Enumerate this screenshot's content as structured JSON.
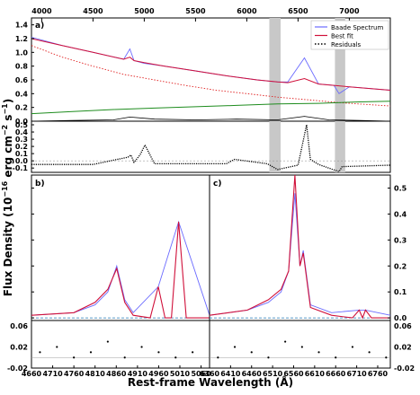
{
  "figure": {
    "ylabel": "Flux Density (10$^{-16}$ erg cm$^{-2}$ s$^{-1}$)",
    "ylabel_parts": [
      "Flux Density (10",
      "−16",
      " erg cm",
      "−2",
      " s",
      "−1",
      ")"
    ],
    "xlabel": "Rest-frame Wavelength (Å)"
  },
  "colors": {
    "spectrum": "#6b6bff",
    "best_fit": "#d0103a",
    "host": "#1e8c1e",
    "powerlaw": "#e02020",
    "shade": "#c8c8c8",
    "narrow": "#2aa02a",
    "broad": "#1f77b4"
  },
  "chart_data": [
    {
      "panel": "a)",
      "type": "line",
      "xlim": [
        3900,
        7400
      ],
      "ylim": [
        0,
        1.5
      ],
      "x_ticks": [
        4000,
        4500,
        5000,
        5500,
        6000,
        6500,
        7000
      ],
      "y_ticks": [
        "0.0",
        "0.2",
        "0.4",
        "0.6",
        "0.8",
        "1.0",
        "1.2",
        "1.4"
      ],
      "shaded_regions": [
        [
          6220,
          6330
        ],
        [
          6860,
          6960
        ]
      ],
      "legend": {
        "position": "top-right",
        "entries": [
          "Baade Spectrum",
          "Best fit",
          "Residuals"
        ]
      },
      "series": [
        {
          "name": "Baade Spectrum",
          "x": [
            3900,
            4200,
            4500,
            4800,
            4860,
            4900,
            5000,
            5200,
            5500,
            5800,
            6100,
            6300,
            6400,
            6562,
            6700,
            6850,
            6900,
            7000,
            7400
          ],
          "y": [
            1.22,
            1.1,
            1.0,
            0.9,
            1.05,
            0.88,
            0.84,
            0.8,
            0.73,
            0.66,
            0.6,
            0.57,
            0.57,
            0.92,
            0.54,
            0.52,
            0.4,
            0.5,
            0.45
          ]
        },
        {
          "name": "Best fit",
          "x": [
            3900,
            4200,
            4500,
            4800,
            4860,
            4900,
            5000,
            5200,
            5500,
            5800,
            6100,
            6300,
            6400,
            6562,
            6700,
            6850,
            7000,
            7400
          ],
          "y": [
            1.2,
            1.1,
            1.0,
            0.9,
            0.93,
            0.88,
            0.85,
            0.8,
            0.73,
            0.66,
            0.6,
            0.57,
            0.56,
            0.62,
            0.54,
            0.52,
            0.5,
            0.45
          ]
        },
        {
          "x": [
            3900,
            4200,
            4500,
            4800,
            5100,
            5400,
            5700,
            6000,
            6300,
            6600,
            6900,
            7200,
            7400
          ],
          "y": [
            1.1,
            0.93,
            0.8,
            0.68,
            0.6,
            0.52,
            0.45,
            0.4,
            0.35,
            0.31,
            0.27,
            0.24,
            0.22
          ]
        },
        {
          "x": [
            3900,
            4300,
            4700,
            5100,
            5500,
            5900,
            6300,
            6700,
            7100,
            7400
          ],
          "y": [
            0.11,
            0.14,
            0.17,
            0.19,
            0.21,
            0.23,
            0.25,
            0.26,
            0.28,
            0.29
          ]
        },
        {
          "x": [
            3900,
            4300,
            4700,
            4860,
            5100,
            5500,
            5900,
            6300,
            6562,
            6800,
            7100,
            7400
          ],
          "y": [
            0.0,
            0.01,
            0.02,
            0.06,
            0.03,
            0.02,
            0.03,
            0.02,
            0.07,
            0.02,
            0.01,
            0.0
          ]
        }
      ]
    },
    {
      "panel": "a-residuals",
      "type": "line",
      "xlim": [
        3900,
        7400
      ],
      "ylim": [
        -0.16,
        0.55
      ],
      "y_ticks": [
        "0.5",
        "0.4",
        "0.3",
        "0.2",
        "0.1",
        "0.0",
        "-0.1"
      ],
      "series": [
        {
          "name": "Residuals",
          "x": [
            3900,
            4500,
            4840,
            4870,
            4900,
            4958,
            5007,
            5100,
            5800,
            5880,
            6200,
            6300,
            6500,
            6583,
            6620,
            6700,
            6900,
            6930,
            7400
          ],
          "y": [
            -0.05,
            -0.05,
            0.05,
            0.08,
            -0.02,
            0.08,
            0.22,
            -0.04,
            -0.04,
            0.02,
            -0.04,
            -0.12,
            -0.06,
            0.5,
            0.02,
            -0.05,
            -0.15,
            -0.08,
            -0.06
          ]
        }
      ]
    },
    {
      "panel": "b)",
      "type": "line",
      "xlim": [
        4660,
        5080
      ],
      "ylim": [
        -0.01,
        0.55
      ],
      "x_ticks": [
        4660,
        4710,
        4760,
        4810,
        4860,
        4910,
        4960,
        5010,
        5060
      ],
      "y_ticks": [
        "0.0",
        "0.1",
        "0.2",
        "0.3",
        "0.4",
        "0.5"
      ],
      "series": [
        {
          "name": "Baade Spectrum",
          "x": [
            4660,
            4760,
            4810,
            4840,
            4861,
            4880,
            4900,
            4959,
            5007,
            5080
          ],
          "y": [
            0.01,
            0.02,
            0.05,
            0.1,
            0.2,
            0.07,
            0.02,
            0.12,
            0.37,
            0.01
          ]
        },
        {
          "name": "Best fit",
          "x": [
            4660,
            4760,
            4810,
            4840,
            4861,
            4880,
            4900,
            4940,
            4959,
            4975,
            4990,
            5007,
            5025,
            5080
          ],
          "y": [
            0.01,
            0.02,
            0.06,
            0.11,
            0.19,
            0.06,
            0.01,
            0.0,
            0.12,
            0.0,
            0.0,
            0.37,
            0.0,
            0.0
          ]
        }
      ]
    },
    {
      "panel": "b-residuals",
      "type": "scatter",
      "xlim": [
        4660,
        5080
      ],
      "ylim": [
        -0.02,
        0.07
      ],
      "y_ticks": [
        "0.06",
        "0.02",
        "-0.02"
      ],
      "series": [
        {
          "name": "Residuals",
          "x": [
            4680,
            4720,
            4760,
            4800,
            4840,
            4880,
            4920,
            4960,
            5000,
            5040
          ],
          "y": [
            0.01,
            0.02,
            0.0,
            0.01,
            0.03,
            0.0,
            0.02,
            0.01,
            0.0,
            0.01
          ]
        }
      ]
    },
    {
      "panel": "c)",
      "type": "line",
      "xlim": [
        6360,
        6790
      ],
      "ylim": [
        -0.01,
        0.55
      ],
      "x_ticks": [
        6360,
        6410,
        6460,
        6510,
        6560,
        6610,
        6660,
        6710,
        6760
      ],
      "y_ticks": [
        "0.0",
        "0.1",
        "0.2",
        "0.3",
        "0.4",
        "0.5"
      ],
      "series": [
        {
          "name": "Baade Spectrum",
          "x": [
            6360,
            6450,
            6500,
            6530,
            6548,
            6563,
            6575,
            6583,
            6600,
            6650,
            6716,
            6731,
            6790
          ],
          "y": [
            0.01,
            0.03,
            0.06,
            0.1,
            0.18,
            0.48,
            0.2,
            0.26,
            0.05,
            0.02,
            0.03,
            0.03,
            0.01
          ]
        },
        {
          "name": "Best fit",
          "x": [
            6360,
            6450,
            6500,
            6530,
            6548,
            6563,
            6575,
            6583,
            6600,
            6650,
            6700,
            6716,
            6724,
            6731,
            6745,
            6790
          ],
          "y": [
            0.01,
            0.03,
            0.07,
            0.11,
            0.18,
            0.55,
            0.2,
            0.25,
            0.04,
            0.01,
            0.0,
            0.03,
            0.0,
            0.03,
            0.0,
            0.0
          ]
        }
      ]
    },
    {
      "panel": "c-residuals",
      "type": "scatter",
      "xlim": [
        6360,
        6790
      ],
      "ylim": [
        -0.02,
        0.07
      ],
      "y_ticks": [
        "0.06",
        "0.02",
        "-0.02"
      ],
      "series": [
        {
          "name": "Residuals",
          "x": [
            6380,
            6420,
            6460,
            6500,
            6540,
            6580,
            6620,
            6660,
            6700,
            6740,
            6780
          ],
          "y": [
            0.0,
            0.02,
            0.01,
            0.0,
            0.03,
            0.02,
            0.01,
            0.0,
            0.02,
            0.01,
            0.0
          ]
        }
      ]
    }
  ]
}
